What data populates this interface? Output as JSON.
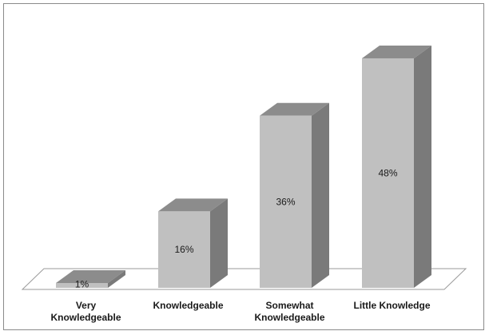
{
  "chart_data": {
    "type": "bar",
    "style": "3d-column",
    "categories": [
      [
        "Very",
        "Knowledgeable"
      ],
      [
        "Knowledgeable"
      ],
      [
        "Somewhat",
        "Knowledgeable"
      ],
      [
        "Little Knowledge"
      ]
    ],
    "values": [
      1,
      16,
      36,
      48
    ],
    "data_labels": [
      "1%",
      "16%",
      "36%",
      "48%"
    ],
    "unit": "%",
    "ylim": [
      0,
      50
    ],
    "grid": false,
    "legend": "none",
    "colors": {
      "bar_front": "#c0c0c0",
      "bar_side": "#7a7a7a",
      "bar_top": "#8c8c8c",
      "floor": "#ffffff",
      "floor_edge": "#9a9a9a",
      "frame": "#8a8a8a"
    }
  }
}
